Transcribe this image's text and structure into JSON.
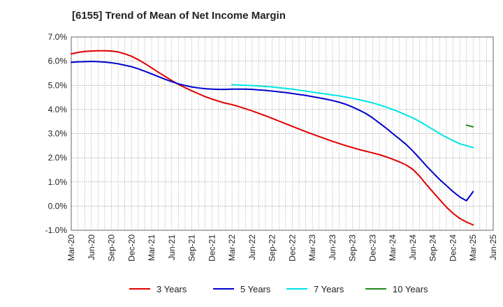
{
  "chart_data": {
    "type": "line",
    "title": "[6155]  Trend of Mean of Net Income Margin",
    "xlabel": "",
    "ylabel": "",
    "x_tick_labels": [
      "Mar-20",
      "Jun-20",
      "Sep-20",
      "Dec-20",
      "Mar-21",
      "Jun-21",
      "Sep-21",
      "Dec-21",
      "Mar-22",
      "Jun-22",
      "Sep-22",
      "Dec-22",
      "Mar-23",
      "Jun-23",
      "Sep-23",
      "Dec-23",
      "Mar-24",
      "Jun-24",
      "Sep-24",
      "Dec-24",
      "Mar-25",
      "Jun-25"
    ],
    "y_tick_labels": [
      "7.0%",
      "6.0%",
      "5.0%",
      "4.0%",
      "3.0%",
      "2.0%",
      "1.0%",
      "0.0%",
      "-1.0%"
    ],
    "y_ticks": [
      7,
      6,
      5,
      4,
      3,
      2,
      1,
      0,
      -1
    ],
    "ylim": [
      -1,
      7
    ],
    "grid": true,
    "legend_position": "bottom",
    "series": [
      {
        "name": "3 Years",
        "color": "#e00000",
        "x": [
          "Mar-20",
          "Apr-20",
          "May-20",
          "Jun-20",
          "Jul-20",
          "Aug-20",
          "Sep-20",
          "Oct-20",
          "Nov-20",
          "Dec-20",
          "Jan-21",
          "Feb-21",
          "Mar-21",
          "Apr-21",
          "May-21",
          "Jun-21",
          "Jul-21",
          "Aug-21",
          "Sep-21",
          "Oct-21",
          "Nov-21",
          "Dec-21",
          "Jan-22",
          "Feb-22",
          "Mar-22",
          "Apr-22",
          "May-22",
          "Jun-22",
          "Jul-22",
          "Aug-22",
          "Sep-22",
          "Oct-22",
          "Nov-22",
          "Dec-22",
          "Jan-23",
          "Feb-23",
          "Mar-23",
          "Apr-23",
          "May-23",
          "Jun-23",
          "Jul-23",
          "Aug-23",
          "Sep-23",
          "Oct-23",
          "Nov-23",
          "Dec-23",
          "Jan-24",
          "Feb-24",
          "Mar-24",
          "Apr-24",
          "May-24",
          "Jun-24",
          "Jul-24",
          "Aug-24",
          "Sep-24",
          "Oct-24",
          "Nov-24",
          "Dec-24",
          "Jan-25",
          "Feb-25",
          "Mar-25"
        ],
        "values": [
          6.3,
          6.36,
          6.4,
          6.42,
          6.43,
          6.43,
          6.42,
          6.38,
          6.3,
          6.2,
          6.06,
          5.9,
          5.72,
          5.54,
          5.37,
          5.2,
          5.04,
          4.9,
          4.77,
          4.65,
          4.53,
          4.43,
          4.34,
          4.26,
          4.2,
          4.12,
          4.03,
          3.94,
          3.84,
          3.74,
          3.63,
          3.52,
          3.41,
          3.3,
          3.19,
          3.08,
          2.98,
          2.88,
          2.78,
          2.68,
          2.59,
          2.5,
          2.42,
          2.34,
          2.27,
          2.2,
          2.13,
          2.04,
          1.94,
          1.83,
          1.7,
          1.52,
          1.24,
          0.9,
          0.58,
          0.27,
          -0.04,
          -0.3,
          -0.51,
          -0.66,
          -0.78
        ]
      },
      {
        "name": "5 Years",
        "color": "#0000cc",
        "x": [
          "Mar-20",
          "Apr-20",
          "May-20",
          "Jun-20",
          "Jul-20",
          "Aug-20",
          "Sep-20",
          "Oct-20",
          "Nov-20",
          "Dec-20",
          "Jan-21",
          "Feb-21",
          "Mar-21",
          "Apr-21",
          "May-21",
          "Jun-21",
          "Jul-21",
          "Aug-21",
          "Sep-21",
          "Oct-21",
          "Nov-21",
          "Dec-21",
          "Jan-22",
          "Feb-22",
          "Mar-22",
          "Apr-22",
          "May-22",
          "Jun-22",
          "Jul-22",
          "Aug-22",
          "Sep-22",
          "Oct-22",
          "Nov-22",
          "Dec-22",
          "Jan-23",
          "Feb-23",
          "Mar-23",
          "Apr-23",
          "May-23",
          "Jun-23",
          "Jul-23",
          "Aug-23",
          "Sep-23",
          "Oct-23",
          "Nov-23",
          "Dec-23",
          "Jan-24",
          "Feb-24",
          "Mar-24",
          "Apr-24",
          "May-24",
          "Jun-24",
          "Jul-24",
          "Aug-24",
          "Sep-24",
          "Oct-24",
          "Nov-24",
          "Dec-24",
          "Jan-25",
          "Feb-25",
          "Mar-25"
        ],
        "values": [
          5.95,
          5.97,
          5.98,
          5.99,
          5.98,
          5.96,
          5.93,
          5.89,
          5.83,
          5.77,
          5.68,
          5.58,
          5.47,
          5.36,
          5.25,
          5.15,
          5.06,
          4.99,
          4.93,
          4.89,
          4.86,
          4.84,
          4.83,
          4.83,
          4.84,
          4.84,
          4.84,
          4.83,
          4.81,
          4.79,
          4.76,
          4.73,
          4.7,
          4.66,
          4.62,
          4.58,
          4.53,
          4.48,
          4.43,
          4.37,
          4.3,
          4.21,
          4.1,
          3.97,
          3.83,
          3.65,
          3.44,
          3.23,
          3.0,
          2.78,
          2.55,
          2.28,
          1.98,
          1.67,
          1.38,
          1.1,
          0.85,
          0.6,
          0.38,
          0.22,
          0.6
        ]
      },
      {
        "name": "7 Years",
        "color": "#00e5e5",
        "x": [
          "Mar-22",
          "Apr-22",
          "May-22",
          "Jun-22",
          "Jul-22",
          "Aug-22",
          "Sep-22",
          "Oct-22",
          "Nov-22",
          "Dec-22",
          "Jan-23",
          "Feb-23",
          "Mar-23",
          "Apr-23",
          "May-23",
          "Jun-23",
          "Jul-23",
          "Aug-23",
          "Sep-23",
          "Oct-23",
          "Nov-23",
          "Dec-23",
          "Jan-24",
          "Feb-24",
          "Mar-24",
          "Apr-24",
          "May-24",
          "Jun-24",
          "Jul-24",
          "Aug-24",
          "Sep-24",
          "Oct-24",
          "Nov-24",
          "Dec-24",
          "Jan-25",
          "Feb-25",
          "Mar-25"
        ],
        "values": [
          5.02,
          5.01,
          5.0,
          4.99,
          4.97,
          4.95,
          4.93,
          4.9,
          4.87,
          4.84,
          4.8,
          4.76,
          4.72,
          4.68,
          4.64,
          4.6,
          4.56,
          4.51,
          4.46,
          4.4,
          4.34,
          4.27,
          4.19,
          4.1,
          4.0,
          3.89,
          3.77,
          3.65,
          3.5,
          3.34,
          3.17,
          3.0,
          2.85,
          2.71,
          2.58,
          2.5,
          2.42
        ]
      },
      {
        "name": "10 Years",
        "color": "#228822",
        "x": [
          "Feb-25",
          "Mar-25"
        ],
        "values": [
          3.35,
          3.28
        ]
      }
    ]
  }
}
